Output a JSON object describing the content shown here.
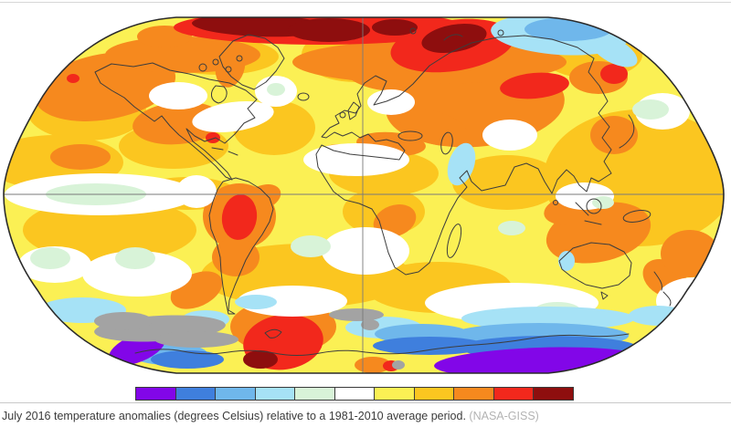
{
  "figure": {
    "caption": "July 2016 temperature anomalies (degrees Celsius) relative to a 1981-2010 average period.",
    "source": "(NASA-GISS)"
  },
  "colorbar": {
    "description": "temperature anomaly scale, cold to hot, 11 steps",
    "colors": [
      "#8206e8",
      "#3f7fdd",
      "#6fb7eb",
      "#a6e2f6",
      "#d8f3d8",
      "#ffffff",
      "#fbf054",
      "#fbc620",
      "#f6891e",
      "#f2281c",
      "#8e0e0e"
    ]
  },
  "map": {
    "type": "global-temperature-anomaly-map",
    "projection": "robinson",
    "period": "July 2016",
    "baseline": "1981-2010",
    "gridlines": [
      "equator",
      "prime-meridian"
    ],
    "no_data_color": "#a3a3a3",
    "hot_regions": [
      "Arctic",
      "central Siberia",
      "Antarctic Peninsula",
      "Brazil"
    ],
    "cool_regions": [
      "East Siberian Arctic Ocean",
      "Southern Ocean near Antarctica",
      "equatorial Pacific"
    ]
  }
}
